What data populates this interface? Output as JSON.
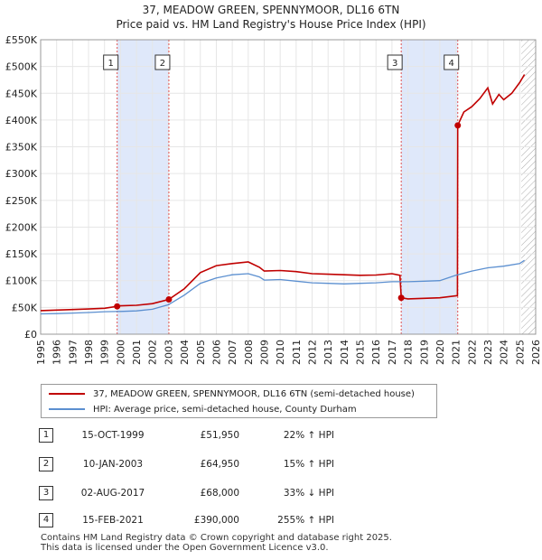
{
  "title_line1": "37, MEADOW GREEN, SPENNYMOOR, DL16 6TN",
  "title_line2": "Price paid vs. HM Land Registry's House Price Index (HPI)",
  "colors": {
    "property": "#c00000",
    "hpi": "#5b8fd0",
    "shade": "#dfe8fa",
    "marker_line": "#e05050"
  },
  "chart_data": {
    "type": "line",
    "ylim": [
      0,
      550000
    ],
    "xlim": [
      1995,
      2026
    ],
    "y_ticks": [
      0,
      50000,
      100000,
      150000,
      200000,
      250000,
      300000,
      350000,
      400000,
      450000,
      500000,
      550000
    ],
    "y_tick_labels": [
      "£0",
      "£50K",
      "£100K",
      "£150K",
      "£200K",
      "£250K",
      "£300K",
      "£350K",
      "£400K",
      "£450K",
      "£500K",
      "£550K"
    ],
    "x_ticks": [
      1995,
      1996,
      1997,
      1998,
      1999,
      2000,
      2001,
      2002,
      2003,
      2004,
      2005,
      2006,
      2007,
      2008,
      2009,
      2010,
      2011,
      2012,
      2013,
      2014,
      2015,
      2016,
      2017,
      2018,
      2019,
      2020,
      2021,
      2022,
      2023,
      2024,
      2025,
      2026
    ],
    "shaded_ranges": [
      [
        1999.79,
        2003.03
      ],
      [
        2017.58,
        2021.12
      ]
    ],
    "forecast_from": 2025.1,
    "series": [
      {
        "name": "37, MEADOW GREEN, SPENNYMOOR, DL16 6TN (semi-detached house)",
        "x": [
          1995,
          1996,
          1997,
          1998,
          1999,
          1999.79,
          2000,
          2001,
          2002,
          2003.03,
          2004,
          2005,
          2006,
          2007,
          2008,
          2008.7,
          2009,
          2010,
          2011,
          2012,
          2013,
          2014,
          2015,
          2016,
          2017,
          2017.5,
          2017.58,
          2018,
          2019,
          2020,
          2021.1,
          2021.12,
          2021.5,
          2022,
          2022.5,
          2023,
          2023.3,
          2023.7,
          2024,
          2024.5,
          2025,
          2025.3
        ],
        "y": [
          44000,
          45000,
          46000,
          47000,
          48500,
          51950,
          53000,
          54000,
          57000,
          64950,
          85000,
          115000,
          128000,
          132000,
          135000,
          125000,
          118000,
          119000,
          117000,
          113000,
          112000,
          111000,
          110000,
          110500,
          113000,
          110000,
          68000,
          66000,
          67000,
          68000,
          72000,
          390000,
          415000,
          425000,
          440000,
          460000,
          430000,
          448000,
          438000,
          450000,
          470000,
          485000
        ]
      },
      {
        "name": "HPI: Average price, semi-detached house, County Durham",
        "x": [
          1995,
          1996,
          1997,
          1998,
          1999,
          2000,
          2001,
          2002,
          2003,
          2004,
          2005,
          2006,
          2007,
          2008,
          2008.7,
          2009,
          2010,
          2011,
          2012,
          2013,
          2014,
          2015,
          2016,
          2017,
          2018,
          2019,
          2020,
          2021,
          2022,
          2023,
          2024,
          2025,
          2025.3
        ],
        "y": [
          38000,
          38500,
          39500,
          40500,
          42000,
          42500,
          43500,
          46500,
          55000,
          73000,
          95000,
          105000,
          111000,
          113000,
          107000,
          101000,
          102000,
          99000,
          96000,
          95000,
          94000,
          95000,
          96000,
          98000,
          98000,
          99000,
          100000,
          110000,
          118000,
          124000,
          127000,
          132000,
          138000
        ]
      }
    ],
    "sales": [
      {
        "label": "1",
        "x": 1999.79,
        "y": 51950
      },
      {
        "label": "2",
        "x": 2003.03,
        "y": 64950
      },
      {
        "label": "3",
        "x": 2017.58,
        "y": 68000
      },
      {
        "label": "4",
        "x": 2021.12,
        "y": 390000
      }
    ]
  },
  "legend": {
    "property_label": "37, MEADOW GREEN, SPENNYMOOR, DL16 6TN (semi-detached house)",
    "hpi_label": "HPI: Average price, semi-detached house, County Durham"
  },
  "transactions": [
    {
      "num": "1",
      "date": "15-OCT-1999",
      "price": "£51,950",
      "hpi": "22% ↑ HPI"
    },
    {
      "num": "2",
      "date": "10-JAN-2003",
      "price": "£64,950",
      "hpi": "15% ↑ HPI"
    },
    {
      "num": "3",
      "date": "02-AUG-2017",
      "price": "£68,000",
      "hpi": "33% ↓ HPI"
    },
    {
      "num": "4",
      "date": "15-FEB-2021",
      "price": "£390,000",
      "hpi": "255% ↑ HPI"
    }
  ],
  "footer_line1": "Contains HM Land Registry data © Crown copyright and database right 2025.",
  "footer_line2": "This data is licensed under the Open Government Licence v3.0."
}
